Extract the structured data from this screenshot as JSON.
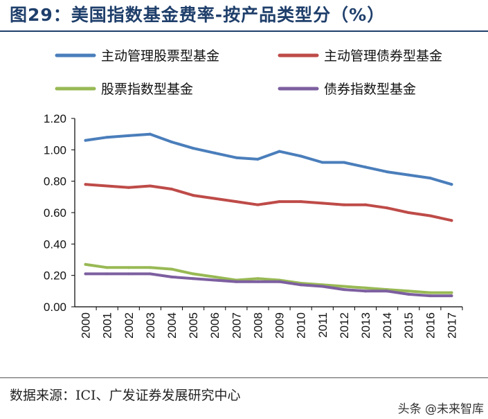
{
  "figure": {
    "title": "图29：美国指数基金费率-按产品类型分（%）",
    "source": "数据来源：ICI、广发证券发展研究中心",
    "watermark": "头条 @未来智库"
  },
  "chart_data": {
    "type": "line",
    "title": "",
    "xlabel": "",
    "ylabel": "",
    "x": [
      "2000",
      "2001",
      "2002",
      "2003",
      "2004",
      "2005",
      "2006",
      "2007",
      "2008",
      "2009",
      "2010",
      "2011",
      "2012",
      "2013",
      "2014",
      "2015",
      "2016",
      "2017"
    ],
    "ylim": [
      0,
      1.2
    ],
    "yticks": [
      "0.00",
      "0.20",
      "0.40",
      "0.60",
      "0.80",
      "1.00",
      "1.20"
    ],
    "grid": false,
    "legend_position": "top",
    "series": [
      {
        "name": "主动管理股票型基金",
        "color": "#4a7ebb",
        "values": [
          1.06,
          1.08,
          1.09,
          1.1,
          1.05,
          1.01,
          0.98,
          0.95,
          0.94,
          0.99,
          0.96,
          0.92,
          0.92,
          0.89,
          0.86,
          0.84,
          0.82,
          0.78
        ]
      },
      {
        "name": "主动管理债券型基金",
        "color": "#be4b48",
        "values": [
          0.78,
          0.77,
          0.76,
          0.77,
          0.75,
          0.71,
          0.69,
          0.67,
          0.65,
          0.67,
          0.67,
          0.66,
          0.65,
          0.65,
          0.63,
          0.6,
          0.58,
          0.55
        ]
      },
      {
        "name": "股票指数型基金",
        "color": "#98b954",
        "values": [
          0.27,
          0.25,
          0.25,
          0.25,
          0.24,
          0.21,
          0.19,
          0.17,
          0.18,
          0.17,
          0.15,
          0.14,
          0.13,
          0.12,
          0.11,
          0.1,
          0.09,
          0.09
        ]
      },
      {
        "name": "债券指数型基金",
        "color": "#7d5fa0",
        "values": [
          0.21,
          0.21,
          0.21,
          0.21,
          0.19,
          0.18,
          0.17,
          0.16,
          0.16,
          0.16,
          0.14,
          0.13,
          0.11,
          0.1,
          0.1,
          0.08,
          0.07,
          0.07
        ]
      }
    ]
  }
}
